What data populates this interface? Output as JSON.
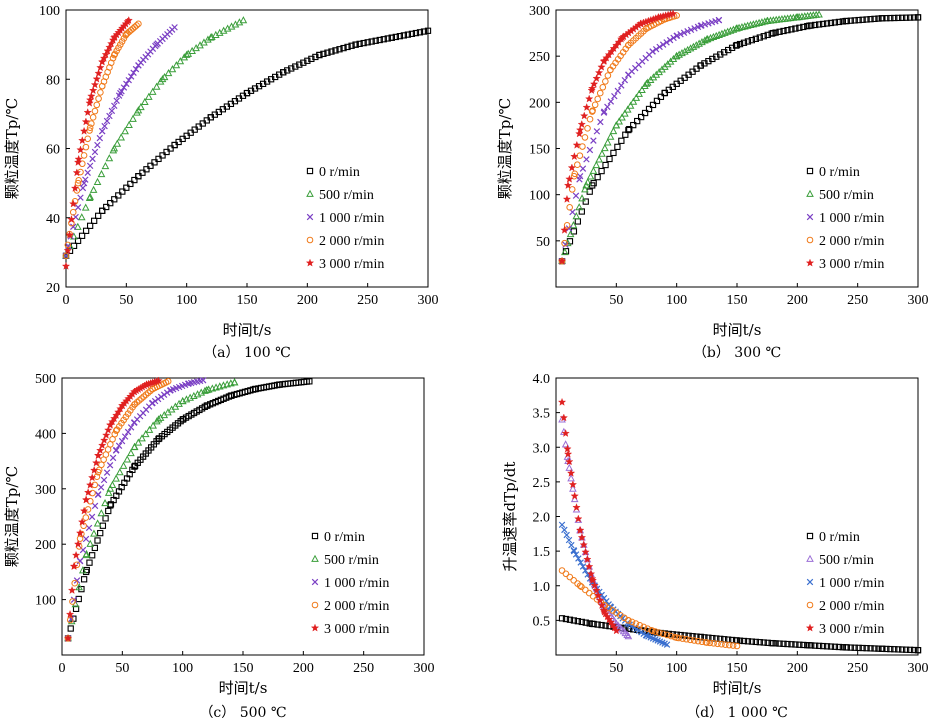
{
  "figure": {
    "series_labels": [
      "0 r/min",
      "500 r/min",
      "1 000 r/min",
      "2 000 r/min",
      "3 000 r/min"
    ]
  },
  "colors": {
    "0": "#000000",
    "500": "#3a9e3a",
    "1000": "#7a3fc4",
    "2000": "#f07a1a",
    "3000": "#e02020",
    "d_500": "#9b6fd6",
    "d_1000": "#3a6fcf"
  },
  "chart_data": [
    {
      "type": "scatter",
      "caption": "（a） 100 ℃",
      "ylabel": "颗粒温度Tp/℃",
      "xlabel": "时间t/s",
      "xlim": [
        0,
        300
      ],
      "ylim": [
        20,
        100
      ],
      "xticks": [
        "0",
        "50",
        "100",
        "150",
        "200",
        "250",
        "300"
      ],
      "yticks": [
        "20",
        "40",
        "60",
        "80",
        "100"
      ],
      "legend_position": "center-right",
      "series": [
        {
          "name": "0 r/min",
          "marker": "square",
          "x": [
            0,
            30,
            60,
            90,
            120,
            150,
            180,
            210,
            240,
            270,
            300
          ],
          "y": [
            29,
            42,
            52,
            61,
            69,
            76,
            82,
            87,
            90,
            92,
            94
          ]
        },
        {
          "name": "500 r/min",
          "marker": "triangle",
          "x": [
            0,
            20,
            40,
            60,
            80,
            100,
            120,
            147
          ],
          "y": [
            29,
            46,
            60,
            71,
            80,
            87,
            92,
            97
          ]
        },
        {
          "name": "1 000 r/min",
          "marker": "x",
          "x": [
            0,
            15,
            30,
            45,
            60,
            75,
            90
          ],
          "y": [
            29,
            50,
            65,
            76,
            84,
            90,
            95
          ]
        },
        {
          "name": "2 000 r/min",
          "marker": "circle",
          "x": [
            0,
            10,
            20,
            30,
            40,
            50,
            60
          ],
          "y": [
            29,
            50,
            66,
            78,
            87,
            93,
            96
          ]
        },
        {
          "name": "3 000 r/min",
          "marker": "star",
          "x": [
            0,
            10,
            20,
            30,
            40,
            52
          ],
          "y": [
            26,
            56,
            74,
            85,
            92,
            97
          ]
        }
      ]
    },
    {
      "type": "scatter",
      "caption": "（b） 300 ℃",
      "ylabel": "颗粒温度Tp/℃",
      "xlabel": "时间t/s",
      "xlim": [
        0,
        300
      ],
      "ylim": [
        0,
        300
      ],
      "xticks": [
        "50",
        "100",
        "150",
        "200",
        "250",
        "300"
      ],
      "yticks": [
        "50",
        "100",
        "150",
        "200",
        "250",
        "300"
      ],
      "legend_position": "center-right",
      "series": [
        {
          "name": "0 r/min",
          "marker": "square",
          "x": [
            5,
            30,
            60,
            90,
            120,
            150,
            180,
            210,
            240,
            270,
            300
          ],
          "y": [
            28,
            110,
            170,
            210,
            240,
            262,
            275,
            283,
            288,
            291,
            292
          ]
        },
        {
          "name": "500 r/min",
          "marker": "triangle",
          "x": [
            5,
            25,
            50,
            75,
            100,
            125,
            150,
            175,
            200,
            218
          ],
          "y": [
            28,
            110,
            175,
            220,
            250,
            268,
            280,
            288,
            292,
            295
          ]
        },
        {
          "name": "1 000 r/min",
          "marker": "x",
          "x": [
            5,
            20,
            40,
            60,
            80,
            100,
            120,
            135
          ],
          "y": [
            28,
            120,
            190,
            230,
            255,
            272,
            283,
            289
          ]
        },
        {
          "name": "2 000 r/min",
          "marker": "circle",
          "x": [
            5,
            15,
            30,
            45,
            60,
            75,
            90,
            100
          ],
          "y": [
            28,
            120,
            190,
            235,
            262,
            280,
            290,
            294
          ]
        },
        {
          "name": "3 000 r/min",
          "marker": "star",
          "x": [
            5,
            10,
            20,
            30,
            40,
            55,
            70,
            85,
            97
          ],
          "y": [
            28,
            110,
            170,
            215,
            245,
            270,
            285,
            292,
            296
          ]
        }
      ]
    },
    {
      "type": "scatter",
      "caption": "（c） 500 ℃",
      "ylabel": "颗粒温度Tp/℃",
      "xlabel": "时间t/s",
      "xlim": [
        0,
        300
      ],
      "ylim": [
        0,
        500
      ],
      "xticks": [
        "0",
        "50",
        "100",
        "150",
        "200",
        "250",
        "300"
      ],
      "yticks": [
        "100",
        "200",
        "300",
        "400",
        "500"
      ],
      "legend_position": "center-right",
      "series": [
        {
          "name": "0 r/min",
          "marker": "square",
          "x": [
            5,
            20,
            40,
            60,
            80,
            100,
            120,
            140,
            160,
            180,
            205
          ],
          "y": [
            30,
            150,
            270,
            340,
            390,
            425,
            450,
            468,
            480,
            488,
            494
          ]
        },
        {
          "name": "500 r/min",
          "marker": "triangle",
          "x": [
            5,
            20,
            40,
            60,
            80,
            100,
            120,
            143
          ],
          "y": [
            30,
            180,
            300,
            375,
            425,
            458,
            478,
            492
          ]
        },
        {
          "name": "1 000 r/min",
          "marker": "x",
          "x": [
            5,
            15,
            30,
            45,
            60,
            75,
            90,
            105,
            117
          ],
          "y": [
            30,
            170,
            290,
            370,
            420,
            455,
            478,
            490,
            496
          ]
        },
        {
          "name": "2 000 r/min",
          "marker": "circle",
          "x": [
            5,
            15,
            30,
            45,
            60,
            75,
            88
          ],
          "y": [
            30,
            210,
            330,
            405,
            452,
            480,
            494
          ]
        },
        {
          "name": "3 000 r/min",
          "marker": "star",
          "x": [
            5,
            10,
            20,
            30,
            40,
            50,
            60,
            70,
            80
          ],
          "y": [
            30,
            160,
            280,
            360,
            415,
            450,
            475,
            488,
            495
          ]
        }
      ]
    },
    {
      "type": "scatter",
      "caption": "（d） 1 000 ℃",
      "ylabel": "升温速率dTp/dt",
      "xlabel": "时间t/s",
      "xlim": [
        0,
        300
      ],
      "ylim": [
        0,
        4.0
      ],
      "xticks": [
        "50",
        "100",
        "150",
        "200",
        "250",
        "300"
      ],
      "yticks": [
        "0.5",
        "1.0",
        "1.5",
        "2.0",
        "2.5",
        "3.0",
        "3.5",
        "4.0"
      ],
      "legend_position": "center-right",
      "series": [
        {
          "name": "0 r/min",
          "marker": "square",
          "x": [
            5,
            30,
            60,
            90,
            120,
            150,
            180,
            210,
            240,
            270,
            300
          ],
          "y": [
            0.53,
            0.45,
            0.38,
            0.31,
            0.26,
            0.21,
            0.17,
            0.14,
            0.11,
            0.09,
            0.07
          ]
        },
        {
          "name": "500 r/min",
          "marker": "triangle",
          "x": [
            5,
            10,
            20,
            30,
            40,
            50,
            60
          ],
          "y": [
            3.4,
            2.8,
            1.8,
            1.1,
            0.7,
            0.45,
            0.27
          ]
        },
        {
          "name": "1 000 r/min",
          "marker": "x",
          "x": [
            5,
            15,
            30,
            45,
            60,
            75,
            92
          ],
          "y": [
            1.88,
            1.5,
            1.05,
            0.7,
            0.45,
            0.28,
            0.15
          ]
        },
        {
          "name": "2 000 r/min",
          "marker": "circle",
          "x": [
            5,
            20,
            40,
            60,
            80,
            100,
            125,
            150
          ],
          "y": [
            1.22,
            1.0,
            0.72,
            0.5,
            0.35,
            0.25,
            0.18,
            0.13
          ]
        },
        {
          "name": "3 000 r/min",
          "marker": "star",
          "x": [
            5,
            10,
            20,
            30,
            40,
            50
          ],
          "y": [
            3.65,
            2.9,
            1.8,
            1.1,
            0.62,
            0.35
          ]
        }
      ]
    }
  ]
}
